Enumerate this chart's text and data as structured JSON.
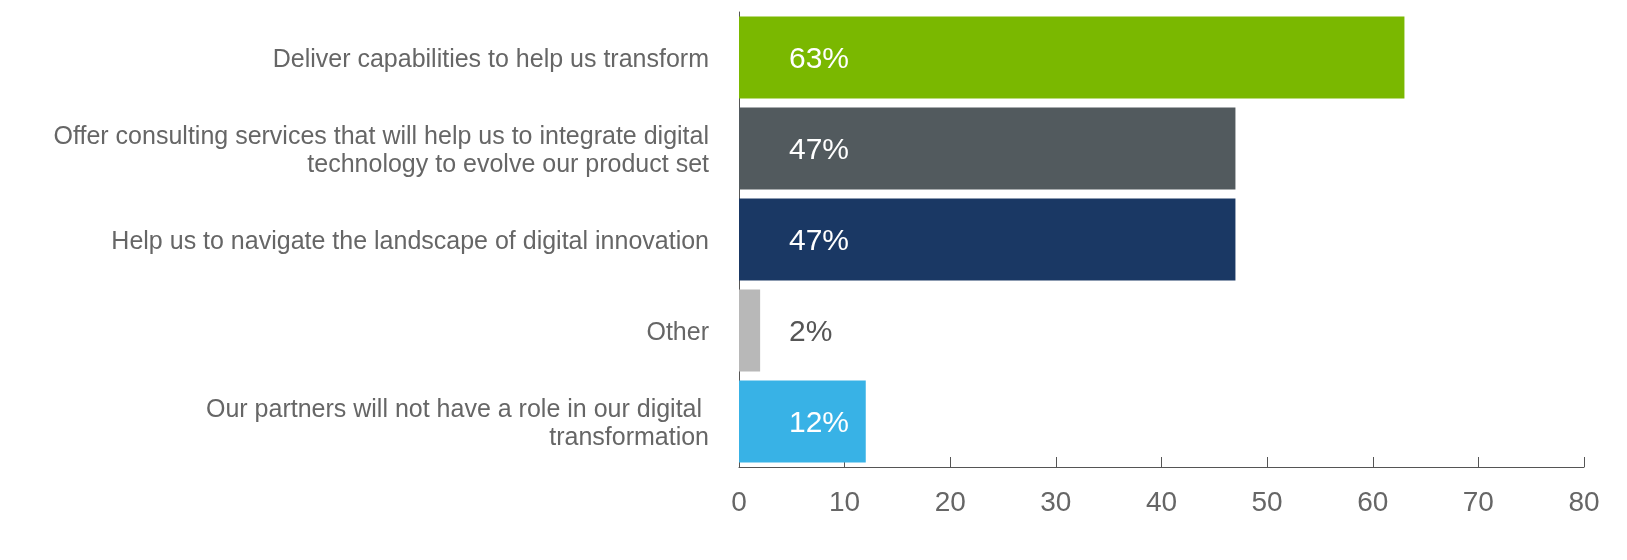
{
  "chart_data": {
    "type": "bar",
    "orientation": "horizontal",
    "categories": [
      "Deliver capabilities to help us transform",
      "Offer consulting services that will help us to integrate digital technology to evolve our product set",
      "Help us to navigate the landscape of digital innovation",
      "Other",
      "Our partners will not have a role in our digital transformation"
    ],
    "values": [
      63,
      47,
      47,
      2,
      12
    ],
    "colors": [
      "#7ab800",
      "#525a5e",
      "#1a3864",
      "#b8b8b8",
      "#38b2e6"
    ],
    "value_labels": [
      "63%",
      "47%",
      "47%",
      "2%",
      "12%"
    ],
    "xlim": [
      0,
      80
    ],
    "xticks": [
      0,
      10,
      20,
      30,
      40,
      50,
      60,
      70,
      80
    ],
    "grid": false
  }
}
